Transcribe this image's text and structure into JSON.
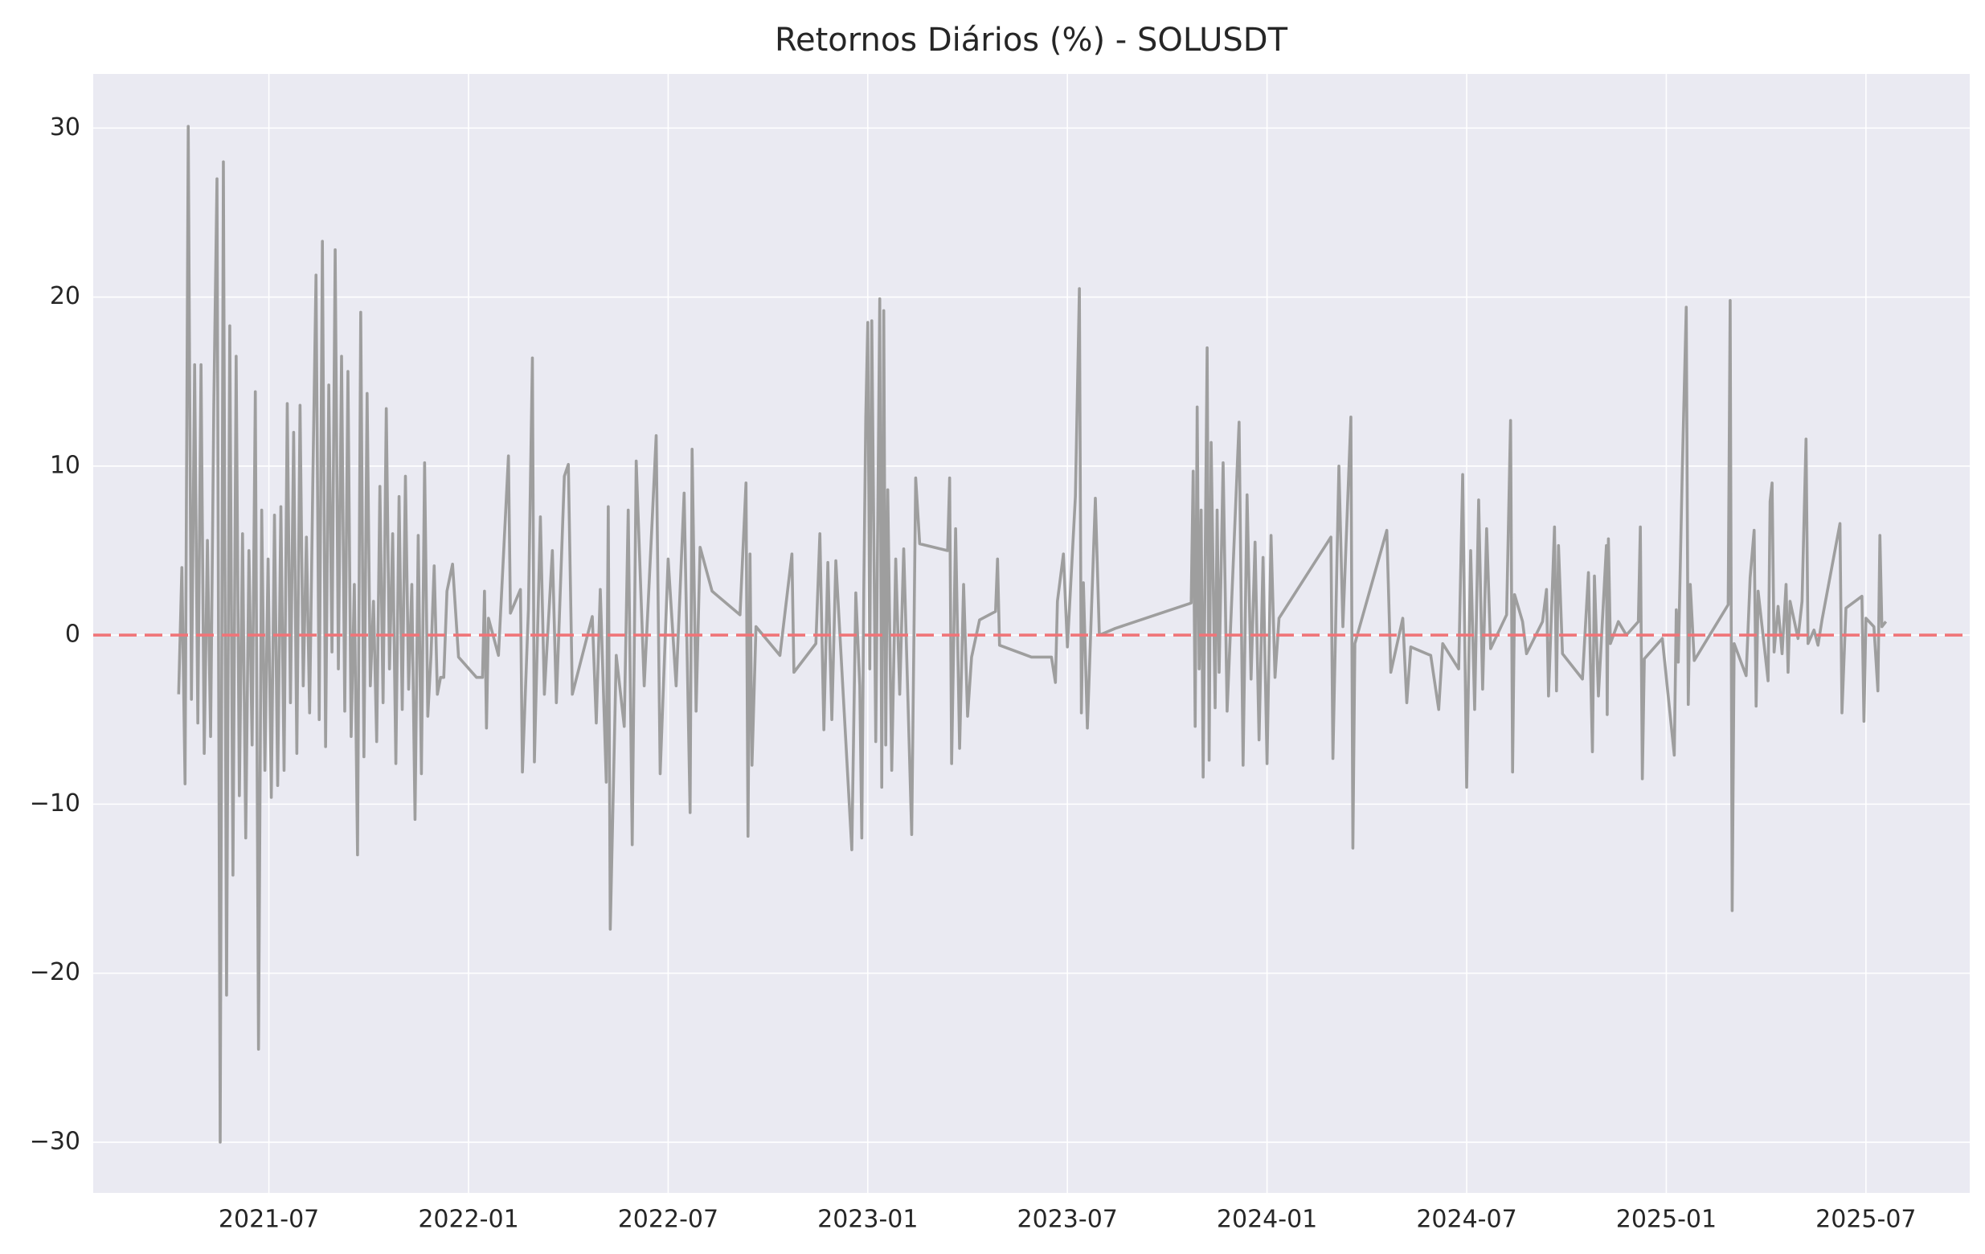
{
  "chart_data": {
    "type": "line",
    "title": "Retornos Diários (%) - SOLUSDT",
    "color": "#9e9e9e",
    "hline": {
      "value": 0,
      "color": "#f07478",
      "dash": true
    },
    "grid": true,
    "xlim": [
      2021.06,
      2025.76
    ],
    "xticks": [
      {
        "value": 2021.5,
        "label": "2021-07"
      },
      {
        "value": 2022.0,
        "label": "2022-01"
      },
      {
        "value": 2022.5,
        "label": "2022-07"
      },
      {
        "value": 2023.0,
        "label": "2023-01"
      },
      {
        "value": 2023.5,
        "label": "2023-07"
      },
      {
        "value": 2024.0,
        "label": "2024-01"
      },
      {
        "value": 2024.5,
        "label": "2024-07"
      },
      {
        "value": 2025.0,
        "label": "2025-01"
      },
      {
        "value": 2025.5,
        "label": "2025-07"
      }
    ],
    "ylim": [
      -33,
      33.2
    ],
    "yticks": [
      {
        "value": -30,
        "label": "−30"
      },
      {
        "value": -20,
        "label": "−20"
      },
      {
        "value": -10,
        "label": "−10"
      },
      0,
      10,
      20,
      30
    ],
    "x": [
      2021.274,
      2021.282,
      2021.29,
      2021.298,
      2021.306,
      2021.314,
      2021.322,
      2021.33,
      2021.338,
      2021.346,
      2021.354,
      2021.362,
      2021.37,
      2021.378,
      2021.386,
      2021.394,
      2021.402,
      2021.41,
      2021.418,
      2021.426,
      2021.434,
      2021.442,
      2021.45,
      2021.458,
      2021.466,
      2021.474,
      2021.482,
      2021.49,
      2021.498,
      2021.506,
      2021.514,
      2021.522,
      2021.53,
      2021.538,
      2021.546,
      2021.554,
      2021.562,
      2021.57,
      2021.578,
      2021.586,
      2021.594,
      2021.602,
      2021.61,
      2021.618,
      2021.626,
      2021.634,
      2021.642,
      2021.65,
      2021.658,
      2021.666,
      2021.674,
      2021.682,
      2021.69,
      2021.698,
      2021.706,
      2021.714,
      2021.722,
      2021.73,
      2021.738,
      2021.746,
      2021.754,
      2021.762,
      2021.77,
      2021.778,
      2021.786,
      2021.794,
      2021.802,
      2021.81,
      2021.818,
      2021.826,
      2021.834,
      2021.842,
      2021.85,
      2021.858,
      2021.866,
      2021.874,
      2021.882,
      2021.89,
      2021.898,
      2021.906,
      2021.914,
      2021.922,
      2021.93,
      2021.938,
      2021.946,
      2021.96,
      2021.975,
      2022.02,
      2022.035,
      2022.04,
      2022.045,
      2022.05,
      2022.075,
      2022.1,
      2022.105,
      2022.13,
      2022.135,
      2022.15,
      2022.16,
      2022.165,
      2022.18,
      2022.19,
      2022.21,
      2022.22,
      2022.24,
      2022.25,
      2022.26,
      2022.31,
      2022.32,
      2022.33,
      2022.345,
      2022.35,
      2022.355,
      2022.37,
      2022.39,
      2022.4,
      2022.41,
      2022.42,
      2022.44,
      2022.46,
      2022.47,
      2022.48,
      2022.5,
      2022.52,
      2022.54,
      2022.555,
      2022.56,
      2022.57,
      2022.58,
      2022.61,
      2022.68,
      2022.695,
      2022.7,
      2022.705,
      2022.71,
      2022.72,
      2022.78,
      2022.81,
      2022.815,
      2022.87,
      2022.88,
      2022.89,
      2022.9,
      2022.91,
      2022.92,
      2022.96,
      2022.97,
      2022.98,
      2022.985,
      2022.99,
      2022.995,
      2023.0,
      2023.005,
      2023.01,
      2023.02,
      2023.03,
      2023.035,
      2023.04,
      2023.045,
      2023.05,
      2023.06,
      2023.07,
      2023.08,
      2023.09,
      2023.11,
      2023.12,
      2023.13,
      2023.2,
      2023.205,
      2023.21,
      2023.22,
      2023.23,
      2023.24,
      2023.25,
      2023.26,
      2023.28,
      2023.32,
      2023.325,
      2023.33,
      2023.41,
      2023.46,
      2023.47,
      2023.475,
      2023.49,
      2023.5,
      2023.52,
      2023.53,
      2023.535,
      2023.54,
      2023.55,
      2023.57,
      2023.58,
      2023.62,
      2023.81,
      2023.815,
      2023.82,
      2023.825,
      2023.83,
      2023.835,
      2023.84,
      2023.85,
      2023.855,
      2023.86,
      2023.87,
      2023.875,
      2023.88,
      2023.89,
      2023.9,
      2023.93,
      2023.94,
      2023.95,
      2023.96,
      2023.97,
      2023.98,
      2023.99,
      2024.0,
      2024.01,
      2024.02,
      2024.03,
      2024.16,
      2024.165,
      2024.18,
      2024.19,
      2024.21,
      2024.215,
      2024.22,
      2024.3,
      2024.31,
      2024.34,
      2024.35,
      2024.36,
      2024.41,
      2024.43,
      2024.44,
      2024.48,
      2024.49,
      2024.5,
      2024.51,
      2024.52,
      2024.53,
      2024.54,
      2024.55,
      2024.56,
      2024.6,
      2024.61,
      2024.615,
      2024.62,
      2024.64,
      2024.65,
      2024.69,
      2024.7,
      2024.705,
      2024.72,
      2024.725,
      2024.73,
      2024.74,
      2024.79,
      2024.805,
      2024.815,
      2024.82,
      2024.83,
      2024.85,
      2024.852,
      2024.855,
      2024.86,
      2024.88,
      2024.9,
      2024.93,
      2024.935,
      2024.94,
      2024.945,
      2024.99,
      2025.02,
      2025.025,
      2025.03,
      2025.04,
      2025.05,
      2025.055,
      2025.06,
      2025.07,
      2025.155,
      2025.16,
      2025.165,
      2025.17,
      2025.2,
      2025.21,
      2025.22,
      2025.225,
      2025.23,
      2025.255,
      2025.26,
      2025.265,
      2025.27,
      2025.28,
      2025.29,
      2025.3,
      2025.305,
      2025.31,
      2025.33,
      2025.34,
      2025.35,
      2025.355,
      2025.37,
      2025.38,
      2025.39,
      2025.435,
      2025.44,
      2025.45,
      2025.49,
      2025.495,
      2025.5,
      2025.52,
      2025.53,
      2025.535,
      2025.54,
      2025.55
    ],
    "values": [
      -3.5,
      4,
      -8.8,
      30.1,
      -3.8,
      16,
      -5.2,
      16,
      -7,
      5.6,
      -6,
      13.6,
      27,
      -30,
      28,
      -21.3,
      18.3,
      -14.2,
      16.5,
      -9.5,
      6,
      -12,
      5,
      -6.5,
      14.4,
      -24.5,
      7.4,
      -8,
      4.5,
      -9.6,
      7.1,
      -8.9,
      7.6,
      -8,
      13.7,
      -4,
      12,
      -7,
      13.6,
      -3,
      5.8,
      -4.6,
      9,
      21.3,
      -5,
      23.3,
      -6.6,
      14.8,
      -1,
      22.8,
      -2,
      16.5,
      -4.5,
      15.6,
      -6,
      3,
      -13,
      19.1,
      -7.2,
      14.3,
      -3,
      2,
      -6.3,
      8.8,
      -4,
      13.4,
      -2,
      6,
      -7.6,
      8.2,
      -4.4,
      9.4,
      -3.2,
      3,
      -10.9,
      5.9,
      -8.2,
      10.2,
      -4.8,
      -1.2,
      4.1,
      -3.5,
      -2.5,
      -2.5,
      2.6,
      4.2,
      -1.3,
      -2.5,
      -2.5,
      2.6,
      -5.5,
      1,
      -1.2,
      10.6,
      1.3,
      2.7,
      -8.1,
      1.5,
      16.4,
      -7.5,
      7,
      -3.5,
      5,
      -4,
      9.4,
      10.1,
      -3.5,
      1.1,
      -5.2,
      2.7,
      -8.7,
      7.6,
      -17.4,
      -1.2,
      -5.4,
      7.4,
      -12.4,
      10.3,
      -3,
      6.8,
      11.8,
      -8.2,
      4.5,
      -3,
      8.4,
      -10.5,
      11,
      -4.5,
      5.2,
      2.6,
      1.2,
      9,
      -11.9,
      4.8,
      -7.7,
      0.5,
      -1.2,
      4.8,
      -2.2,
      -0.5,
      6,
      -5.6,
      4.3,
      -5,
      4.4,
      -12.7,
      2.5,
      -3,
      -12,
      2.7,
      12.9,
      18.5,
      -2,
      18.6,
      -6.3,
      19.9,
      -9,
      19.2,
      -6.5,
      8.6,
      -8,
      4.5,
      -3.5,
      5.1,
      -11.8,
      9.3,
      5.4,
      5,
      9.3,
      -7.6,
      6.3,
      -6.7,
      3,
      -4.8,
      -1.3,
      0.9,
      1.4,
      4.5,
      -0.6,
      -1.3,
      -1.3,
      -2.8,
      2,
      4.8,
      -0.7,
      8.2,
      20.5,
      -4.6,
      3.1,
      -5.5,
      8.1,
      0,
      0.4,
      1.9,
      9.7,
      -5.4,
      13.5,
      -2,
      7.4,
      -8.4,
      17,
      -7.4,
      11.4,
      -4.3,
      7.4,
      -2.2,
      10.2,
      -4.5,
      12.6,
      -7.7,
      8.3,
      -2.6,
      5.5,
      -6.2,
      4.6,
      -7.6,
      5.9,
      -2.5,
      1,
      5.8,
      -7.3,
      10,
      0.5,
      12.9,
      -12.6,
      -0.5,
      6.2,
      -2.2,
      1,
      -4,
      -0.7,
      -1.2,
      -4.4,
      -0.5,
      -2,
      9.5,
      -9,
      5,
      -4.4,
      8,
      -3.2,
      6.3,
      -0.8,
      1.2,
      12.7,
      -8.1,
      2.4,
      0.8,
      -1.1,
      0.8,
      2.7,
      -3.6,
      6.4,
      -3.3,
      5.3,
      -1.1,
      -2.6,
      3.7,
      -6.9,
      3.5,
      -3.6,
      5.3,
      -4.7,
      5.7,
      -0.5,
      0.8,
      0,
      0.8,
      6.4,
      -8.5,
      -1.4,
      -0.2,
      -7.1,
      1.5,
      -1.6,
      9.7,
      19.4,
      -4.1,
      3,
      -1.5,
      1.8,
      19.8,
      -16.3,
      -0.5,
      -2.4,
      3.4,
      6.2,
      -4.2,
      2.6,
      -2.7,
      7.9,
      9,
      -1,
      1.7,
      -1.1,
      3,
      -2.2,
      2,
      -0.2,
      2,
      11.6,
      -0.5,
      0.3,
      -0.6,
      0.9,
      6.6,
      -4.6,
      1.6,
      2.3,
      -5.1,
      1,
      0.5,
      -3.3,
      5.9,
      0.5,
      0.8
    ]
  }
}
